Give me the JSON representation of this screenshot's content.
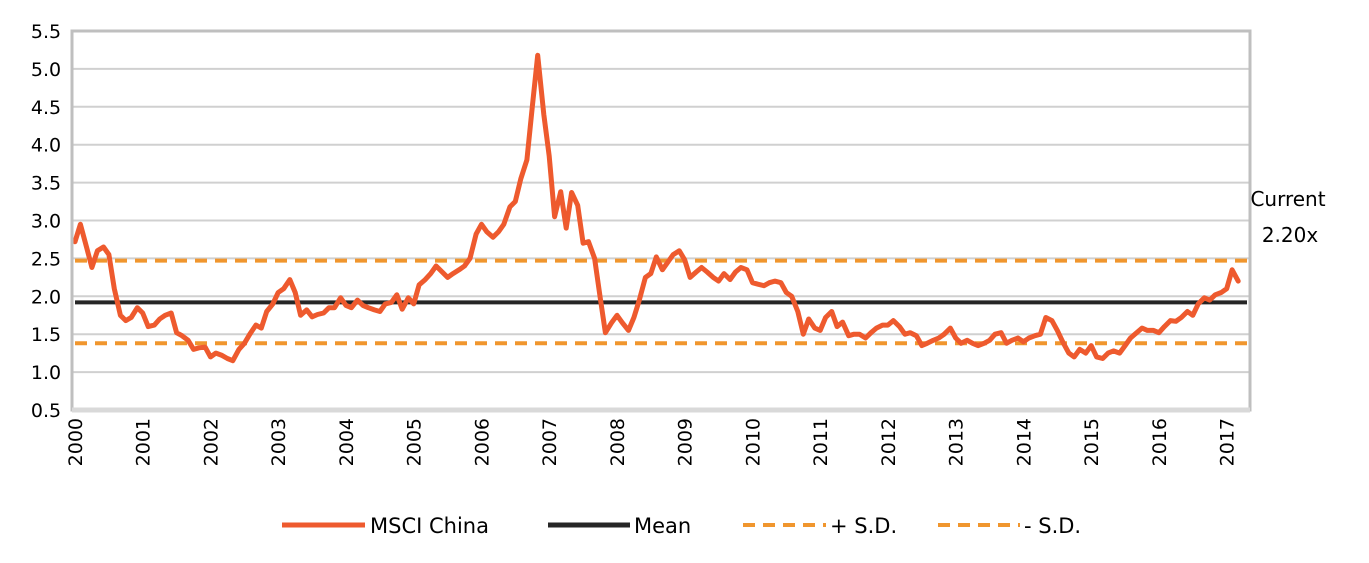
{
  "chart_data": {
    "type": "line",
    "title": "",
    "xlabel": "",
    "ylabel": "",
    "ylim": [
      0.5,
      5.5
    ],
    "yticks": [
      "0.5",
      "1.0",
      "1.5",
      "2.0",
      "2.5",
      "3.0",
      "3.5",
      "4.0",
      "4.5",
      "5.0",
      "5.5"
    ],
    "xlim": [
      2000,
      2017.3
    ],
    "xticks": [
      "2000",
      "2001",
      "2002",
      "2003",
      "2004",
      "2005",
      "2006",
      "2007",
      "2008",
      "2009",
      "2010",
      "2011",
      "2012",
      "2013",
      "2014",
      "2015",
      "2016",
      "2017"
    ],
    "grid": "horizontal",
    "legend_position": "bottom",
    "annotation": {
      "line1": "Current",
      "line2": "2.20x"
    },
    "colors": {
      "msci": "#EE5A2E",
      "mean": "#262626",
      "sd": "#F0962E",
      "grid": "#D0D0D0",
      "axis": "#BFBFBF"
    },
    "series": [
      {
        "name": "MSCI China",
        "x": [
          2000.0,
          2000.08,
          2000.17,
          2000.25,
          2000.33,
          2000.42,
          2000.5,
          2000.58,
          2000.67,
          2000.75,
          2000.83,
          2000.92,
          2001.0,
          2001.08,
          2001.17,
          2001.25,
          2001.33,
          2001.42,
          2001.5,
          2001.58,
          2001.67,
          2001.75,
          2001.83,
          2001.92,
          2002.0,
          2002.08,
          2002.17,
          2002.25,
          2002.33,
          2002.42,
          2002.5,
          2002.58,
          2002.67,
          2002.75,
          2002.83,
          2002.92,
          2003.0,
          2003.08,
          2003.17,
          2003.25,
          2003.33,
          2003.42,
          2003.5,
          2003.58,
          2003.67,
          2003.75,
          2003.83,
          2003.92,
          2004.0,
          2004.08,
          2004.17,
          2004.25,
          2004.33,
          2004.42,
          2004.5,
          2004.58,
          2004.67,
          2004.75,
          2004.83,
          2004.92,
          2005.0,
          2005.08,
          2005.17,
          2005.25,
          2005.33,
          2005.42,
          2005.5,
          2005.58,
          2005.67,
          2005.75,
          2005.83,
          2005.92,
          2006.0,
          2006.08,
          2006.17,
          2006.25,
          2006.33,
          2006.42,
          2006.5,
          2006.58,
          2006.67,
          2006.75,
          2006.83,
          2006.92,
          2007.0,
          2007.08,
          2007.17,
          2007.25,
          2007.33,
          2007.42,
          2007.5,
          2007.58,
          2007.67,
          2007.75,
          2007.83,
          2007.92,
          2008.0,
          2008.08,
          2008.17,
          2008.25,
          2008.33,
          2008.42,
          2008.5,
          2008.58,
          2008.67,
          2008.75,
          2008.83,
          2008.92,
          2009.0,
          2009.08,
          2009.17,
          2009.25,
          2009.33,
          2009.42,
          2009.5,
          2009.58,
          2009.67,
          2009.75,
          2009.83,
          2009.92,
          2010.0,
          2010.08,
          2010.17,
          2010.25,
          2010.33,
          2010.42,
          2010.5,
          2010.58,
          2010.67,
          2010.75,
          2010.83,
          2010.92,
          2011.0,
          2011.08,
          2011.17,
          2011.25,
          2011.33,
          2011.42,
          2011.5,
          2011.58,
          2011.67,
          2011.75,
          2011.83,
          2011.92,
          2012.0,
          2012.08,
          2012.17,
          2012.25,
          2012.33,
          2012.42,
          2012.5,
          2012.58,
          2012.67,
          2012.75,
          2012.83,
          2012.92,
          2013.0,
          2013.08,
          2013.17,
          2013.25,
          2013.33,
          2013.42,
          2013.5,
          2013.58,
          2013.67,
          2013.75,
          2013.83,
          2013.92,
          2014.0,
          2014.08,
          2014.17,
          2014.25,
          2014.33,
          2014.42,
          2014.5,
          2014.58,
          2014.67,
          2014.75,
          2014.83,
          2014.92,
          2015.0,
          2015.08,
          2015.17,
          2015.25,
          2015.33,
          2015.42,
          2015.5,
          2015.58,
          2015.67,
          2015.75,
          2015.83,
          2015.92,
          2016.0,
          2016.08,
          2016.17,
          2016.25,
          2016.33,
          2016.42,
          2016.5,
          2016.58,
          2016.67,
          2016.75,
          2016.83,
          2016.92,
          2017.0,
          2017.08,
          2017.17
        ],
        "values": [
          2.72,
          2.95,
          2.65,
          2.38,
          2.6,
          2.65,
          2.55,
          2.1,
          1.75,
          1.68,
          1.72,
          1.85,
          1.78,
          1.6,
          1.62,
          1.7,
          1.75,
          1.78,
          1.52,
          1.48,
          1.42,
          1.3,
          1.32,
          1.33,
          1.2,
          1.25,
          1.22,
          1.18,
          1.15,
          1.3,
          1.38,
          1.5,
          1.62,
          1.58,
          1.8,
          1.9,
          2.05,
          2.1,
          2.22,
          2.05,
          1.75,
          1.82,
          1.73,
          1.76,
          1.78,
          1.85,
          1.85,
          1.98,
          1.88,
          1.85,
          1.95,
          1.88,
          1.85,
          1.82,
          1.8,
          1.9,
          1.92,
          2.02,
          1.83,
          1.98,
          1.9,
          2.15,
          2.22,
          2.3,
          2.4,
          2.32,
          2.25,
          2.3,
          2.35,
          2.4,
          2.5,
          2.82,
          2.95,
          2.85,
          2.78,
          2.85,
          2.95,
          3.18,
          3.25,
          3.55,
          3.8,
          4.5,
          5.18,
          4.4,
          3.85,
          3.05,
          3.38,
          2.9,
          3.37,
          3.2,
          2.7,
          2.72,
          2.5,
          2.0,
          1.52,
          1.65,
          1.75,
          1.65,
          1.55,
          1.72,
          1.95,
          2.25,
          2.3,
          2.52,
          2.35,
          2.45,
          2.55,
          2.6,
          2.48,
          2.25,
          2.32,
          2.38,
          2.32,
          2.25,
          2.2,
          2.3,
          2.22,
          2.32,
          2.38,
          2.35,
          2.18,
          2.16,
          2.14,
          2.18,
          2.2,
          2.18,
          2.05,
          2.0,
          1.8,
          1.5,
          1.7,
          1.58,
          1.55,
          1.72,
          1.8,
          1.6,
          1.66,
          1.48,
          1.5,
          1.5,
          1.45,
          1.52,
          1.58,
          1.62,
          1.62,
          1.68,
          1.6,
          1.5,
          1.52,
          1.48,
          1.35,
          1.38,
          1.42,
          1.45,
          1.5,
          1.58,
          1.45,
          1.38,
          1.42,
          1.38,
          1.35,
          1.38,
          1.42,
          1.5,
          1.52,
          1.38,
          1.42,
          1.45,
          1.4,
          1.45,
          1.48,
          1.5,
          1.72,
          1.68,
          1.55,
          1.4,
          1.25,
          1.2,
          1.3,
          1.25,
          1.35,
          1.2,
          1.18,
          1.25,
          1.28,
          1.25,
          1.35,
          1.45,
          1.52,
          1.58,
          1.55,
          1.55,
          1.52,
          1.6,
          1.68,
          1.67,
          1.72,
          1.8,
          1.75,
          1.9,
          1.98,
          1.95,
          2.02,
          2.05,
          2.1,
          2.35,
          2.2
        ]
      },
      {
        "name": "Mean",
        "values": [
          1.92,
          1.92
        ]
      },
      {
        "name": "+ S.D.",
        "values": [
          2.47,
          2.47
        ]
      },
      {
        "name": "- S.D.",
        "values": [
          1.38,
          1.38
        ]
      }
    ]
  }
}
